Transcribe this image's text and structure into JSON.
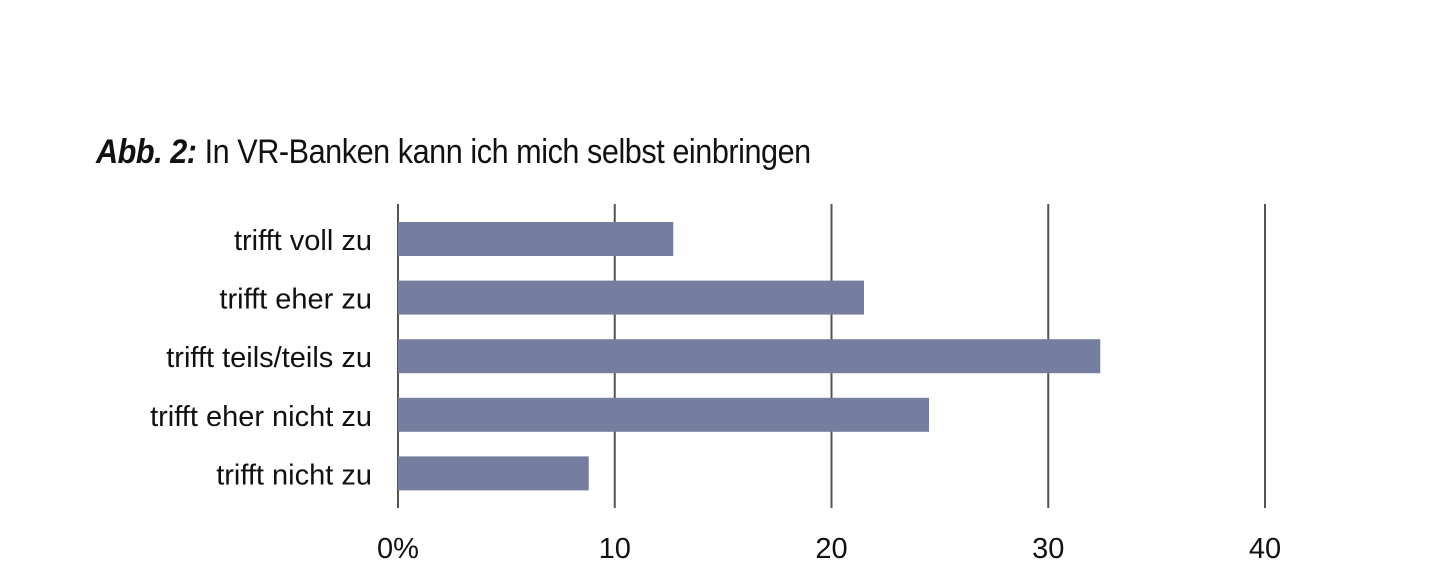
{
  "figure": {
    "label": "Abb. 2:",
    "title": "In VR-Banken kann ich mich selbst einbringen"
  },
  "chart_data": {
    "type": "bar",
    "orientation": "horizontal",
    "categories": [
      "trifft voll zu",
      "trifft eher zu",
      "trifft teils/teils zu",
      "trifft eher nicht zu",
      "trifft nicht zu"
    ],
    "values": [
      12.7,
      21.5,
      32.4,
      24.5,
      8.8
    ],
    "xlim": [
      0,
      40
    ],
    "x_ticks": [
      0,
      10,
      20,
      30,
      40
    ],
    "x_tick_labels": [
      "0%",
      "10",
      "20",
      "30",
      "40"
    ],
    "grid": true,
    "colors": {
      "bar": "#757e9e",
      "grid": "#55554f"
    }
  }
}
